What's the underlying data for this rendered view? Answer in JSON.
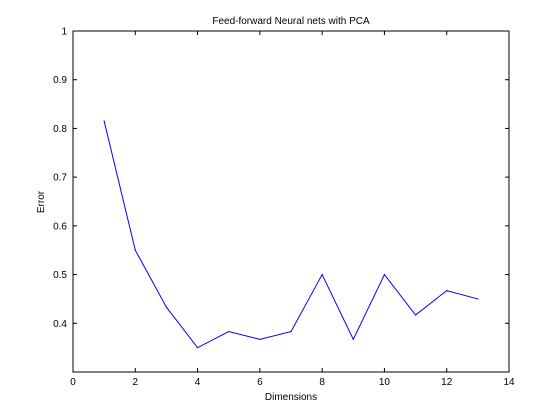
{
  "chart_data": {
    "type": "line",
    "title": "Feed-forward Neural nets with PCA",
    "xlabel": "Dimensions",
    "ylabel": "Error",
    "xlim": [
      0,
      14
    ],
    "ylim": [
      0.3,
      1
    ],
    "xticks": [
      0,
      2,
      4,
      6,
      8,
      10,
      12,
      14
    ],
    "yticks": [
      0.4,
      0.5,
      0.6,
      0.7,
      0.8,
      0.9,
      1
    ],
    "grid": false,
    "series": [
      {
        "color": "#0000ff",
        "x": [
          1,
          2,
          3,
          4,
          5,
          6,
          7,
          8,
          9,
          10,
          11,
          12,
          13
        ],
        "y": [
          0.815,
          0.55,
          0.433,
          0.35,
          0.383,
          0.367,
          0.383,
          0.5,
          0.367,
          0.5,
          0.417,
          0.467,
          0.45
        ]
      }
    ]
  }
}
